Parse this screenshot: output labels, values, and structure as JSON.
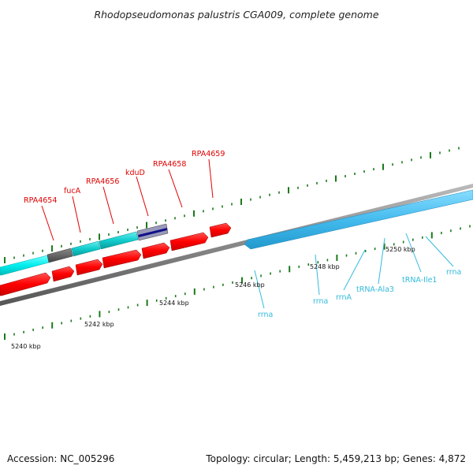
{
  "header": {
    "title": "Rhodopseudomonas palustris CGA009, complete genome"
  },
  "footer": {
    "accession": "Accession: NC_005296",
    "summary": "Topology: circular; Length: 5,459,213 bp; Genes: 4,872"
  },
  "scale_labels": [
    "5240 kbp",
    "5242 kbp",
    "5244 kbp",
    "5246 kbp",
    "5248 kbp",
    "5250 kbp"
  ],
  "upper_gene_labels": [
    "RPA4654",
    "fucA",
    "RPA4656",
    "kduD",
    "RPA4658",
    "RPA4659"
  ],
  "lower_gene_labels": [
    "rrna",
    "rrna",
    "rrnA",
    "tRNA-Ala3",
    "tRNA-Ile1",
    "rrna"
  ],
  "colors": {
    "cds": "#ff1010",
    "teal": "#11cccc",
    "gray_feature": "#666666",
    "kdud_outer": "#9999bb",
    "kdud_inner": "#111188",
    "rrna": "#44bbee",
    "backbone": "#888888",
    "ticks": "#1a7a1a",
    "red_label": "#e00000",
    "blue_label": "#33bbdd"
  }
}
